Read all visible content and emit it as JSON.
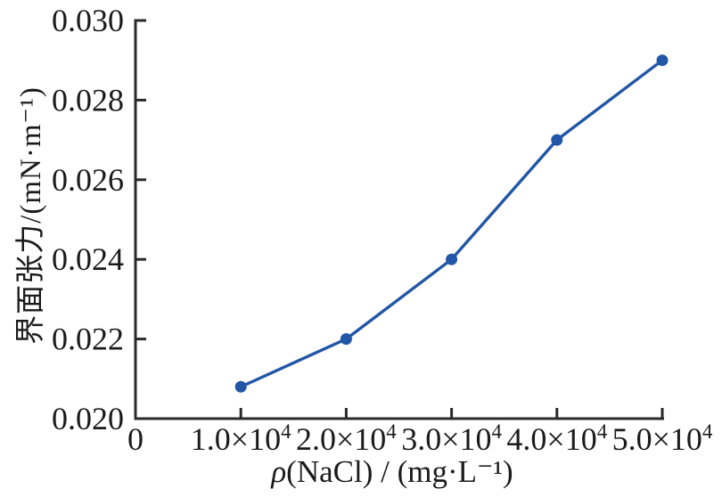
{
  "figure": {
    "background": "#ffffff",
    "axis_color": "#2a2a2a",
    "text_color": "#1b1b1b"
  },
  "chart_data": {
    "type": "line",
    "xlabel_italic_prefix": "ρ",
    "xlabel_rest": "(NaCl) / (mg·L⁻¹)",
    "ylabel": "界面张力/(mN·m⁻¹)",
    "x": [
      10000,
      20000,
      30000,
      40000,
      50000
    ],
    "y": [
      0.0208,
      0.022,
      0.024,
      0.027,
      0.029
    ],
    "line_color": "#2256a6",
    "marker": "circle",
    "xlim": [
      0,
      50000
    ],
    "ylim": [
      0.02,
      0.03
    ],
    "x_ticks": [
      0,
      10000,
      20000,
      30000,
      40000,
      50000
    ],
    "x_tick_labels": [
      "0",
      "1.0×10^4",
      "2.0×10^4",
      "3.0×10^4",
      "4.0×10^4",
      "5.0×10^4"
    ],
    "y_ticks": [
      0.02,
      0.022,
      0.024,
      0.026,
      0.028,
      0.03
    ],
    "y_tick_labels": [
      "0.020",
      "0.022",
      "0.024",
      "0.026",
      "0.028",
      "0.030"
    ],
    "grid": false,
    "legend": "none",
    "spines": [
      "left",
      "bottom"
    ],
    "ticks_direction": "in"
  }
}
